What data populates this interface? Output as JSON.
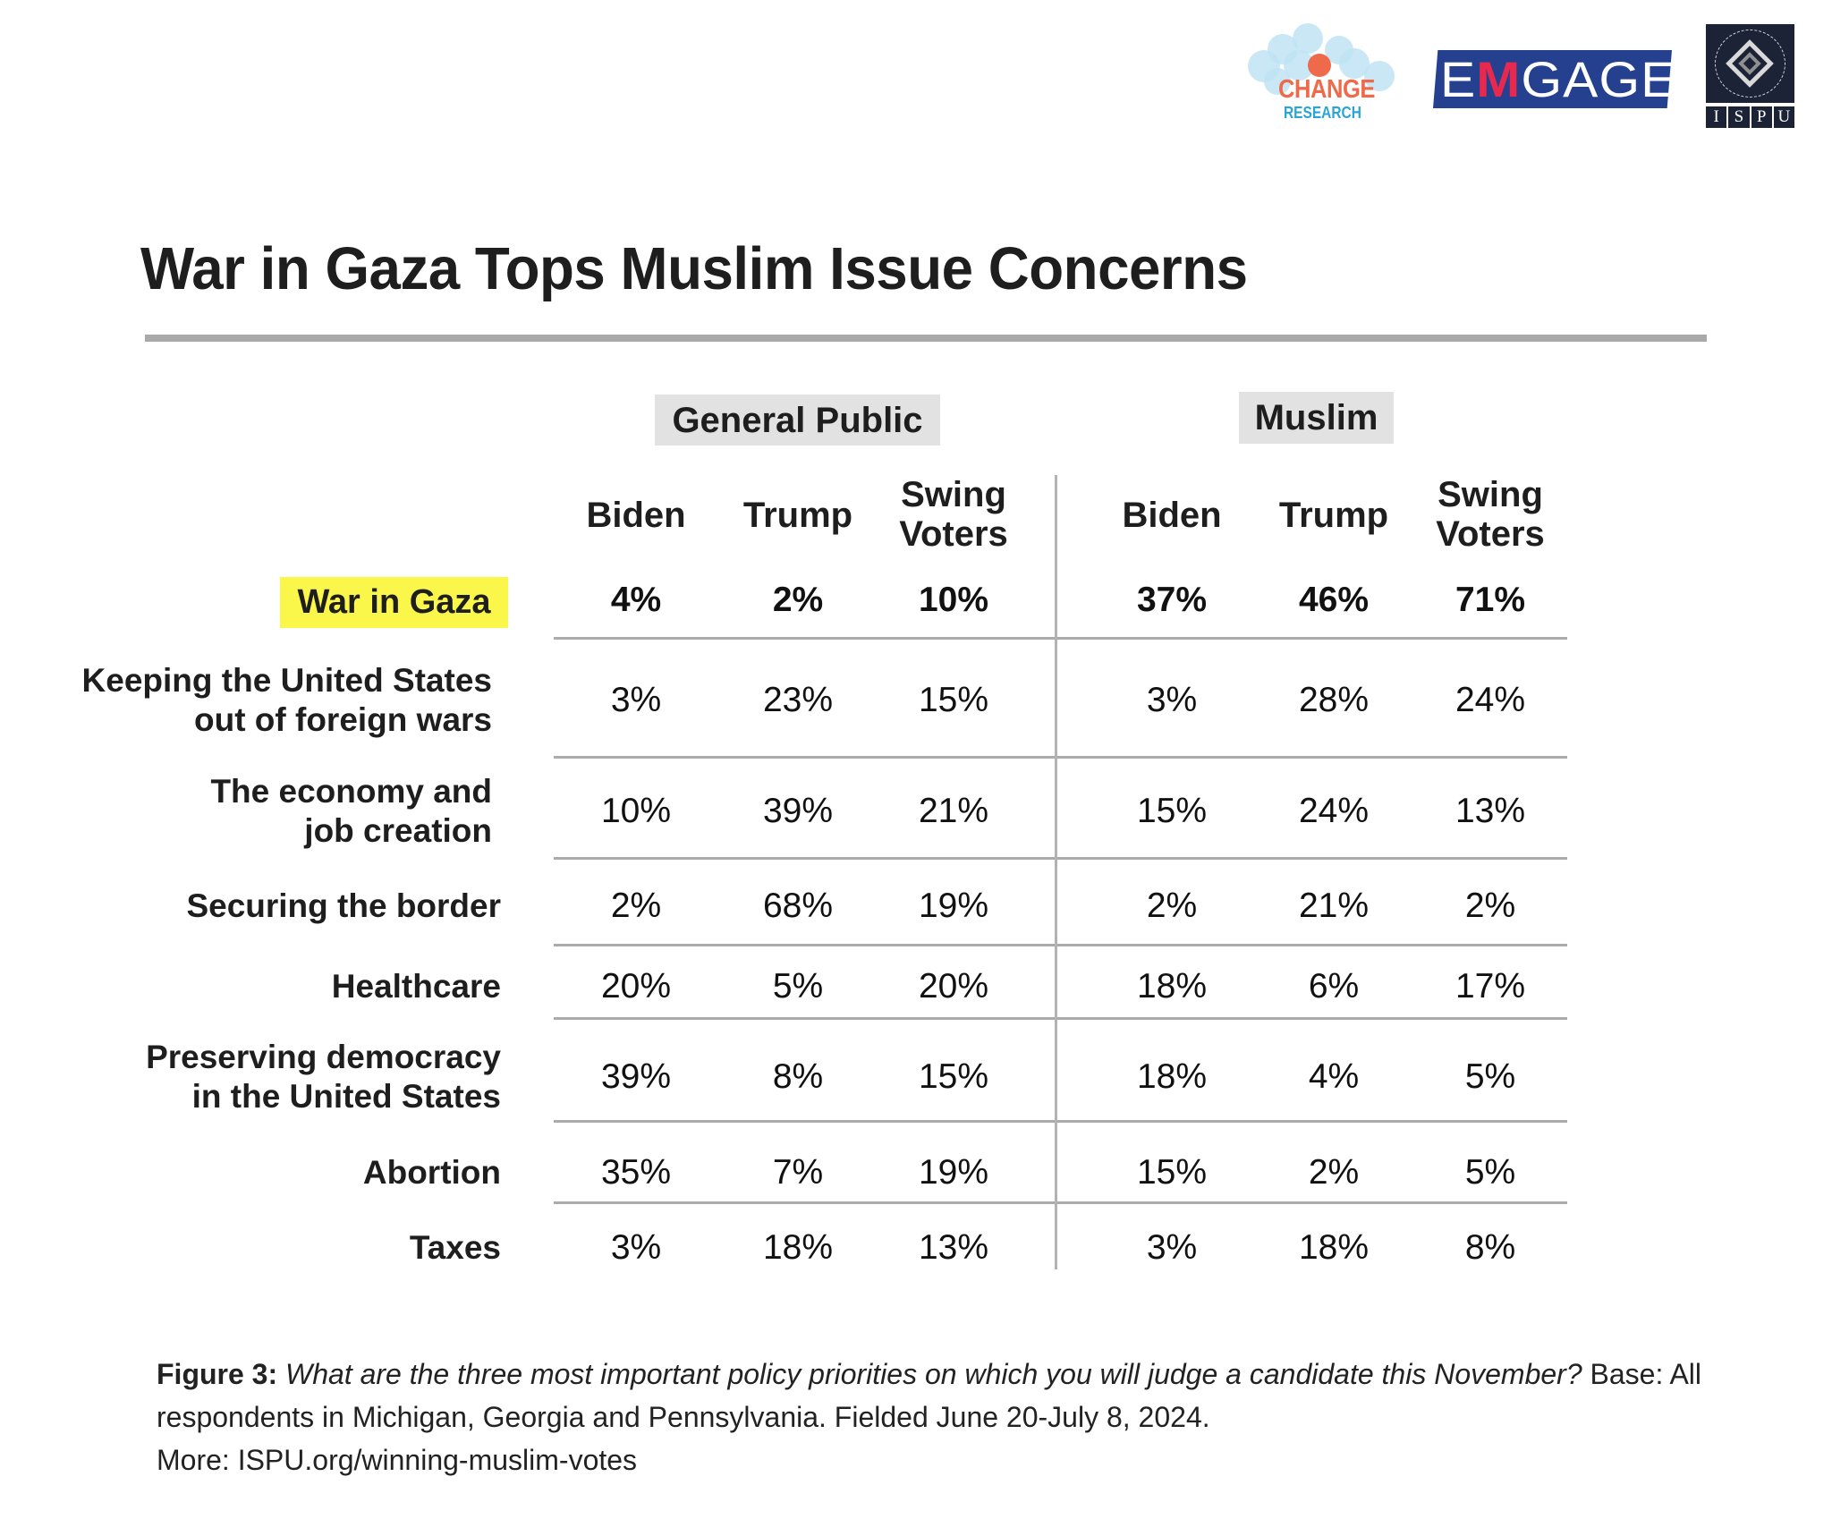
{
  "logos": {
    "change_research": {
      "line1": "CHANGE",
      "line2": "RESEARCH",
      "colors": {
        "orange": "#ef6a4b",
        "blue": "#2aa4d6",
        "circle": "#bfe3f3"
      }
    },
    "emgage": {
      "prefix": "E",
      "accent": "M",
      "suffix": "GAGE",
      "colors": {
        "bg": "#24408f",
        "accent": "#e8294f"
      }
    },
    "ispu": {
      "ring_text": "INSTITUTE FOR SOCIAL POLICY AND UNDERSTANDING",
      "letters": [
        "I",
        "S",
        "P",
        "U"
      ],
      "colors": {
        "bg": "#1c2337"
      }
    }
  },
  "colors": {
    "highlight": "#fbf74a",
    "group_bg": "#e2e2e2",
    "rule": "#a9a9a9"
  },
  "chart_data": {
    "type": "table",
    "title": "War in Gaza Tops Muslim Issue Concerns",
    "groups": [
      {
        "name": "General Public",
        "columns": [
          "Biden",
          "Trump",
          "Swing Voters"
        ]
      },
      {
        "name": "Muslim",
        "columns": [
          "Biden",
          "Trump",
          "Swing Voters"
        ]
      }
    ],
    "column_headers": [
      {
        "line1": "Biden",
        "line2": ""
      },
      {
        "line1": "Trump",
        "line2": ""
      },
      {
        "line1": "Swing",
        "line2": "Voters"
      },
      {
        "line1": "Biden",
        "line2": ""
      },
      {
        "line1": "Trump",
        "line2": ""
      },
      {
        "line1": "Swing",
        "line2": "Voters"
      }
    ],
    "rows": [
      {
        "label": "War in Gaza",
        "label_lines": [
          "War in Gaza"
        ],
        "highlighted": true,
        "values": [
          "4%",
          "2%",
          "10%",
          "37%",
          "46%",
          "71%"
        ]
      },
      {
        "label": "Keeping the United States out of foreign wars",
        "label_lines": [
          "Keeping the United States",
          "out of foreign wars"
        ],
        "highlighted": false,
        "values": [
          "3%",
          "23%",
          "15%",
          "3%",
          "28%",
          "24%"
        ]
      },
      {
        "label": "The economy and job creation",
        "label_lines": [
          "The economy and",
          "job creation"
        ],
        "highlighted": false,
        "values": [
          "10%",
          "39%",
          "21%",
          "15%",
          "24%",
          "13%"
        ]
      },
      {
        "label": "Securing the border",
        "label_lines": [
          "Securing the border"
        ],
        "highlighted": false,
        "values": [
          "2%",
          "68%",
          "19%",
          "2%",
          "21%",
          "2%"
        ]
      },
      {
        "label": "Healthcare",
        "label_lines": [
          "Healthcare"
        ],
        "highlighted": false,
        "values": [
          "20%",
          "5%",
          "20%",
          "18%",
          "6%",
          "17%"
        ]
      },
      {
        "label": "Preserving democracy in the United States",
        "label_lines": [
          "Preserving democracy",
          "in the United States"
        ],
        "highlighted": false,
        "values": [
          "39%",
          "8%",
          "15%",
          "18%",
          "4%",
          "5%"
        ]
      },
      {
        "label": "Abortion",
        "label_lines": [
          "Abortion"
        ],
        "highlighted": false,
        "values": [
          "35%",
          "7%",
          "19%",
          "15%",
          "2%",
          "5%"
        ]
      },
      {
        "label": "Taxes",
        "label_lines": [
          "Taxes"
        ],
        "highlighted": false,
        "values": [
          "3%",
          "18%",
          "13%",
          "3%",
          "18%",
          "8%"
        ]
      }
    ],
    "units": "percent"
  },
  "caption": {
    "lead": "Figure 3:",
    "question": "What are the three most important policy priorities on which you will judge a candidate this November?",
    "base": "Base: All respondents in Michigan, Georgia and Pennsylvania. Fielded June 20-July 8, 2024.",
    "more": "More: ISPU.org/winning-muslim-votes"
  }
}
